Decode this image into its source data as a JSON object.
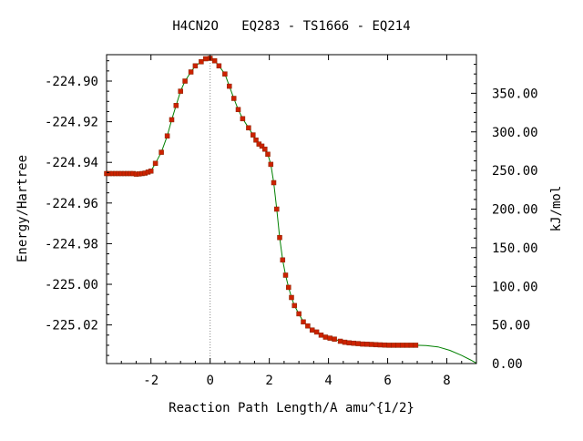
{
  "chart_data": {
    "type": "line",
    "title": "H4CN2O   EQ283 - TS1666 - EQ214",
    "xlabel": "Reaction Path Length/A amu^{1/2}",
    "ylabel": "Energy/Hartree",
    "y2label": "kJ/mol",
    "xlim": [
      -3.5,
      9.0
    ],
    "ylim": [
      -225.039,
      -224.887
    ],
    "y2lim": [
      0,
      400
    ],
    "x_ticks": [
      -2,
      0,
      2,
      4,
      6,
      8
    ],
    "x_tick_labels": [
      "-2",
      "0",
      "2",
      "4",
      "6",
      "8"
    ],
    "y_ticks": [
      -224.9,
      -224.92,
      -224.94,
      -224.96,
      -224.98,
      -225.0,
      -225.02
    ],
    "y_tick_labels": [
      "-224.90",
      "-224.92",
      "-224.94",
      "-224.96",
      "-224.98",
      "-225.00",
      "-225.02"
    ],
    "y2_ticks": [
      0,
      50,
      100,
      150,
      200,
      250,
      300,
      350
    ],
    "y2_tick_labels": [
      "0.00",
      "50.00",
      "100.00",
      "150.00",
      "200.00",
      "250.00",
      "300.00",
      "350.00"
    ],
    "ts_marker_x": 0,
    "grid": false,
    "colors": {
      "curve": "#008000",
      "points": "#cc2200",
      "ts_line": "#888888"
    },
    "series": [
      {
        "x": [
          -3.5,
          -3.4,
          -3.3,
          -3.2,
          -3.1,
          -3.0,
          -2.9,
          -2.8,
          -2.7,
          -2.6,
          -2.5,
          -2.4,
          -2.3,
          -2.2,
          -2.1,
          -2.0,
          -1.85,
          -1.65,
          -1.45,
          -1.3,
          -1.15,
          -1.0,
          -0.85,
          -0.65,
          -0.5,
          -0.3,
          -0.15,
          0.0,
          0.15,
          0.3,
          0.5,
          0.65,
          0.8,
          0.95,
          1.1,
          1.3,
          1.45,
          1.55,
          1.65,
          1.75,
          1.85,
          1.95,
          2.05,
          2.15,
          2.25,
          2.35,
          2.45,
          2.55,
          2.65,
          2.75,
          2.85,
          3.0,
          3.15,
          3.3,
          3.45,
          3.6,
          3.75,
          3.9,
          4.05,
          4.2,
          4.4,
          4.55,
          4.7,
          4.85,
          5.0,
          5.15,
          5.3,
          5.45,
          5.6,
          5.75,
          5.9,
          6.05,
          6.2,
          6.35,
          6.5,
          6.65,
          6.8,
          6.95
        ],
        "y": [
          -224.9455,
          -224.9455,
          -224.9455,
          -224.9455,
          -224.9455,
          -224.9455,
          -224.9455,
          -224.9455,
          -224.9455,
          -224.9455,
          -224.9458,
          -224.9457,
          -224.9455,
          -224.9453,
          -224.9448,
          -224.9443,
          -224.9405,
          -224.935,
          -224.927,
          -224.919,
          -224.912,
          -224.905,
          -224.9,
          -224.8955,
          -224.8925,
          -224.8905,
          -224.889,
          -224.8888,
          -224.89,
          -224.8925,
          -224.8965,
          -224.9025,
          -224.9085,
          -224.914,
          -224.9185,
          -224.923,
          -224.9265,
          -224.929,
          -224.931,
          -224.932,
          -224.9335,
          -224.936,
          -224.941,
          -224.95,
          -224.963,
          -224.977,
          -224.988,
          -224.9955,
          -225.0015,
          -225.0065,
          -225.0105,
          -225.0145,
          -225.0185,
          -225.0205,
          -225.0225,
          -225.0235,
          -225.025,
          -225.026,
          -225.0265,
          -225.027,
          -225.028,
          -225.0285,
          -225.0288,
          -225.029,
          -225.0292,
          -225.0294,
          -225.0295,
          -225.0296,
          -225.0297,
          -225.0298,
          -225.0299,
          -225.03,
          -225.03,
          -225.03,
          -225.03,
          -225.03,
          -225.03,
          -225.03
        ]
      }
    ],
    "extrapolated_curve": {
      "x": [
        6.95,
        7.3,
        7.7,
        8.1,
        8.5,
        8.8,
        9.0
      ],
      "y": [
        -225.03,
        -225.0301,
        -225.0308,
        -225.0325,
        -225.035,
        -225.0372,
        -225.0388
      ]
    }
  }
}
